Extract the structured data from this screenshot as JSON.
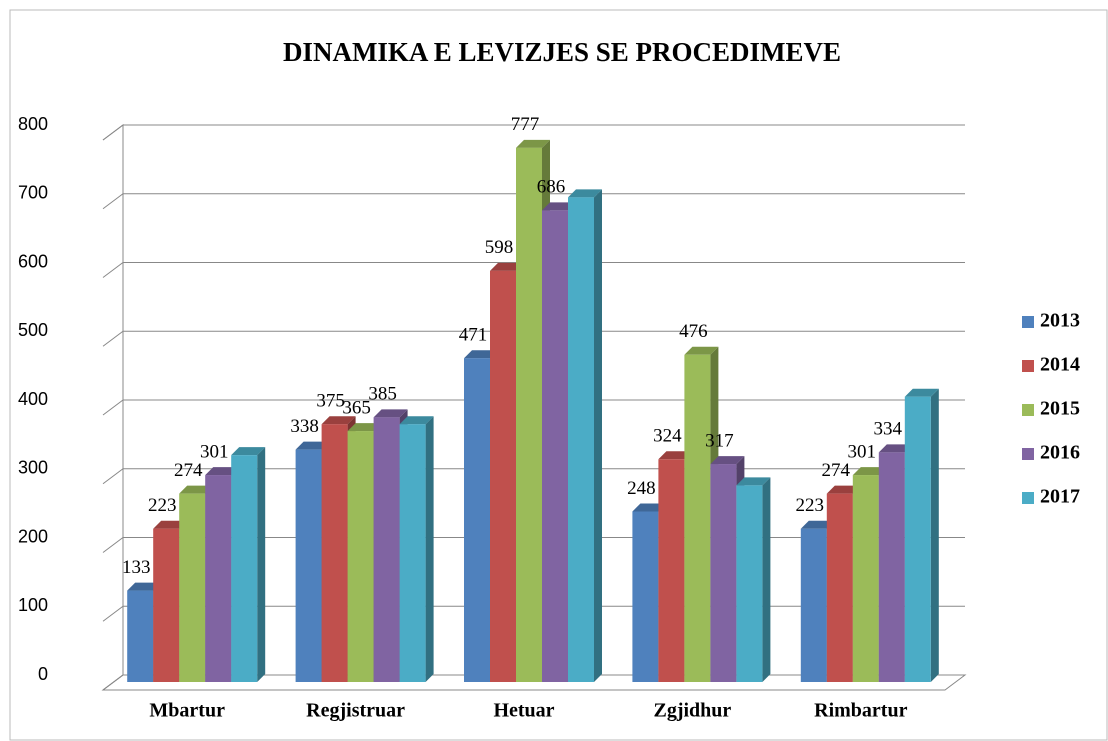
{
  "chart_data": {
    "type": "bar3d",
    "title": "DINAMIKA E LEVIZJES SE PROCEDIMEVE",
    "categories": [
      "Mbartur",
      "Regjistruar",
      "Hetuar",
      "Zgjidhur",
      "Rimbartur"
    ],
    "series": [
      {
        "name": "2013",
        "color": "#4f81bd",
        "values": [
          133,
          338,
          471,
          248,
          223
        ],
        "data_labels": true
      },
      {
        "name": "2014",
        "color": "#c0504d",
        "values": [
          223,
          375,
          598,
          324,
          274
        ],
        "data_labels": true
      },
      {
        "name": "2015",
        "color": "#9bbb59",
        "values": [
          274,
          365,
          777,
          476,
          301
        ],
        "data_labels": true
      },
      {
        "name": "2016",
        "color": "#8064a2",
        "values": [
          301,
          385,
          686,
          317,
          334
        ],
        "data_labels": true
      },
      {
        "name": "2017",
        "color": "#4bacc6",
        "values": [
          330,
          375,
          705,
          286,
          415
        ],
        "data_labels": false
      }
    ],
    "ylim": [
      0,
      800
    ],
    "yticks": [
      0,
      100,
      200,
      300,
      400,
      500,
      600,
      700,
      800
    ],
    "grid": true,
    "legend": "right"
  }
}
